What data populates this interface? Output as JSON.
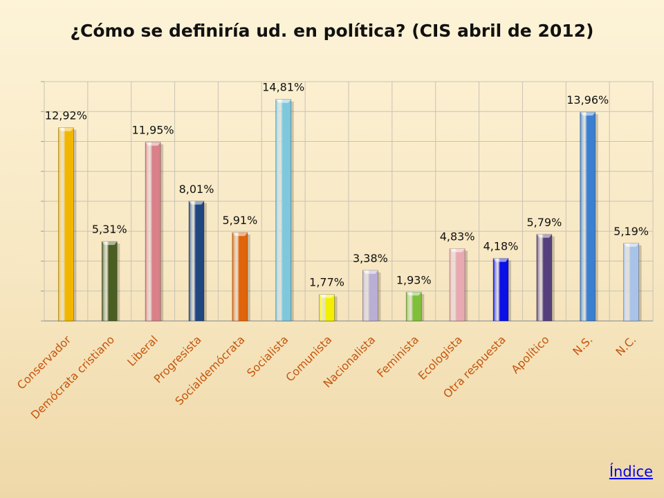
{
  "chart_data": {
    "type": "bar",
    "title": "¿Cómo se definiría ud. en política? (CIS abril de 2012)",
    "categories": [
      "Conservador",
      "Demócrata cristiano",
      "Liberal",
      "Progresista",
      "Socialdemócrata",
      "Socialista",
      "Comunista",
      "Nacionalista",
      "Feminista",
      "Ecologista",
      "Otra respuesta",
      "Apolítico",
      "N.S.",
      "N.C."
    ],
    "values": [
      12.92,
      5.31,
      11.95,
      8.01,
      5.91,
      14.81,
      1.77,
      3.38,
      1.93,
      4.83,
      4.18,
      5.79,
      13.96,
      5.19
    ],
    "value_labels": [
      "12,92%",
      "5,31%",
      "11,95%",
      "8,01%",
      "5,91%",
      "14,81%",
      "1,77%",
      "3,38%",
      "1,93%",
      "4,83%",
      "4,18%",
      "5,79%",
      "13,96%",
      "5,19%"
    ],
    "bar_colors": [
      "#f2b600",
      "#4a5e22",
      "#d98088",
      "#1f467e",
      "#e0640a",
      "#7ec8de",
      "#f2f000",
      "#b9aed3",
      "#7fbf3a",
      "#e8aab0",
      "#0a10e6",
      "#56407c",
      "#3a7fd0",
      "#a9c2e8"
    ],
    "ylim": [
      0,
      16
    ],
    "grid": true,
    "category_label_color": "#c4540c",
    "xlabel": "",
    "ylabel": ""
  },
  "footer": {
    "index_link": "Índice"
  }
}
